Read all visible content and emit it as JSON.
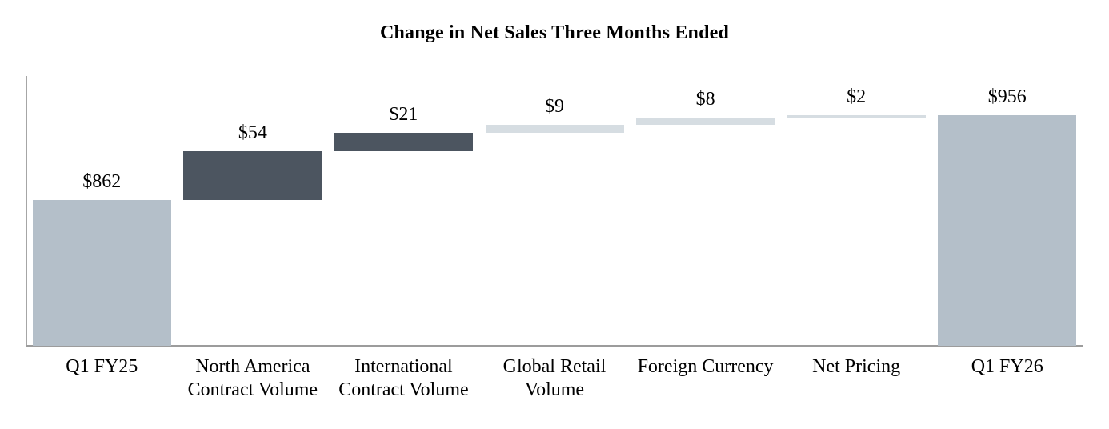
{
  "chart_data": {
    "type": "waterfall",
    "title": "Change in Net Sales Three Months Ended",
    "categories": [
      "Q1 FY25",
      "North America Contract Volume",
      "International Contract Volume",
      "Global Retail Volume",
      "Foreign Currency",
      "Net Pricing",
      "Q1 FY26"
    ],
    "bars": [
      {
        "category": "Q1 FY25",
        "category_lines": [
          "Q1 FY25"
        ],
        "value": 862,
        "value_label": "$862",
        "bar_type": "total",
        "start": 700,
        "end": 862,
        "color_key": "total"
      },
      {
        "category": "North America Contract Volume",
        "category_lines": [
          "North America",
          "Contract Volume"
        ],
        "value": 54,
        "value_label": "$54",
        "bar_type": "increase",
        "start": 862,
        "end": 916,
        "color_key": "dark"
      },
      {
        "category": "International Contract Volume",
        "category_lines": [
          "International",
          "Contract Volume"
        ],
        "value": 21,
        "value_label": "$21",
        "bar_type": "increase",
        "start": 916,
        "end": 937,
        "color_key": "dark"
      },
      {
        "category": "Global Retail Volume",
        "category_lines": [
          "Global Retail",
          "Volume"
        ],
        "value": 9,
        "value_label": "$9",
        "bar_type": "increase",
        "start": 937,
        "end": 946,
        "color_key": "light"
      },
      {
        "category": "Foreign Currency",
        "category_lines": [
          "Foreign Currency"
        ],
        "value": 8,
        "value_label": "$8",
        "bar_type": "increase",
        "start": 946,
        "end": 954,
        "color_key": "light"
      },
      {
        "category": "Net Pricing",
        "category_lines": [
          "Net Pricing"
        ],
        "value": 2,
        "value_label": "$2",
        "bar_type": "increase",
        "start": 954,
        "end": 956,
        "color_key": "light"
      },
      {
        "category": "Q1 FY26",
        "category_lines": [
          "Q1 FY26"
        ],
        "value": 956,
        "value_label": "$956",
        "bar_type": "total",
        "start": 700,
        "end": 956,
        "color_key": "total"
      }
    ],
    "colors": {
      "total": "#b4bfc9",
      "dark": "#4c5560",
      "light": "#d6dde2",
      "axis": "#a6a6a6"
    },
    "axis": {
      "y_min": 700,
      "y_max": 1000,
      "y_tick_labels_visible": false,
      "gridlines": false
    },
    "legend": "none"
  }
}
